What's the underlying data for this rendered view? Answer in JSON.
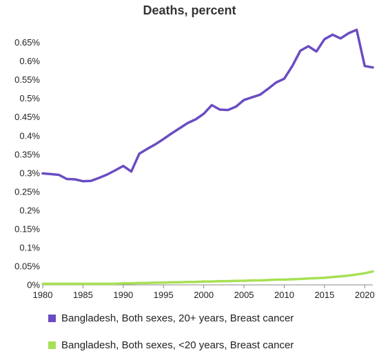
{
  "chart_data": {
    "type": "line",
    "title": "Deaths, percent",
    "xlabel": "",
    "ylabel": "",
    "xlim": [
      1980,
      2021
    ],
    "ylim": [
      0,
      0.0069
    ],
    "grid": false,
    "legend_position": "bottom",
    "x_ticks": [
      1980,
      1985,
      1990,
      1995,
      2000,
      2005,
      2010,
      2015,
      2020
    ],
    "y_ticks": [
      {
        "value": 0,
        "label": "0%"
      },
      {
        "value": 0.0005,
        "label": "0.05%"
      },
      {
        "value": 0.001,
        "label": "0.1%"
      },
      {
        "value": 0.0015,
        "label": "0.15%"
      },
      {
        "value": 0.002,
        "label": "0.2%"
      },
      {
        "value": 0.0025,
        "label": "0.25%"
      },
      {
        "value": 0.003,
        "label": "0.3%"
      },
      {
        "value": 0.0035,
        "label": "0.35%"
      },
      {
        "value": 0.004,
        "label": "0.4%"
      },
      {
        "value": 0.0045,
        "label": "0.45%"
      },
      {
        "value": 0.005,
        "label": "0.5%"
      },
      {
        "value": 0.0055,
        "label": "0.55%"
      },
      {
        "value": 0.006,
        "label": "0.6%"
      },
      {
        "value": 0.0065,
        "label": "0.65%"
      }
    ],
    "x": [
      1980,
      1981,
      1982,
      1983,
      1984,
      1985,
      1986,
      1987,
      1988,
      1989,
      1990,
      1991,
      1992,
      1993,
      1994,
      1995,
      1996,
      1997,
      1998,
      1999,
      2000,
      2001,
      2002,
      2003,
      2004,
      2005,
      2006,
      2007,
      2008,
      2009,
      2010,
      2011,
      2012,
      2013,
      2014,
      2015,
      2016,
      2017,
      2018,
      2019,
      2020,
      2021
    ],
    "series": [
      {
        "name": "Bangladesh, Both sexes, 20+ years, Breast cancer",
        "color": "#6a4cc2",
        "values": [
          0.00299,
          0.00297,
          0.00295,
          0.00284,
          0.00283,
          0.00278,
          0.00279,
          0.00287,
          0.00296,
          0.00307,
          0.00319,
          0.00304,
          0.00352,
          0.00365,
          0.00377,
          0.00391,
          0.00406,
          0.0042,
          0.00434,
          0.00444,
          0.00459,
          0.00482,
          0.0047,
          0.00469,
          0.00478,
          0.00496,
          0.00503,
          0.0051,
          0.00526,
          0.00543,
          0.00553,
          0.00587,
          0.00628,
          0.0064,
          0.00626,
          0.00659,
          0.00671,
          0.00661,
          0.00675,
          0.00684,
          0.00587,
          0.00583
        ]
      },
      {
        "name": "Bangladesh, Both sexes, <20 years, Breast cancer",
        "color": "#a7e055",
        "values": [
          3e-05,
          3e-05,
          3e-05,
          3e-05,
          3e-05,
          3e-05,
          3e-05,
          3e-05,
          3e-05,
          3e-05,
          4e-05,
          4e-05,
          5e-05,
          5e-05,
          6e-05,
          6e-05,
          7e-05,
          7e-05,
          8e-05,
          8e-05,
          9e-05,
          9e-05,
          0.0001,
          0.0001,
          0.00011,
          0.00011,
          0.00012,
          0.00012,
          0.00013,
          0.00014,
          0.00014,
          0.00015,
          0.00016,
          0.00017,
          0.00018,
          0.00019,
          0.00021,
          0.00023,
          0.00025,
          0.00028,
          0.00031,
          0.00036
        ]
      }
    ]
  }
}
